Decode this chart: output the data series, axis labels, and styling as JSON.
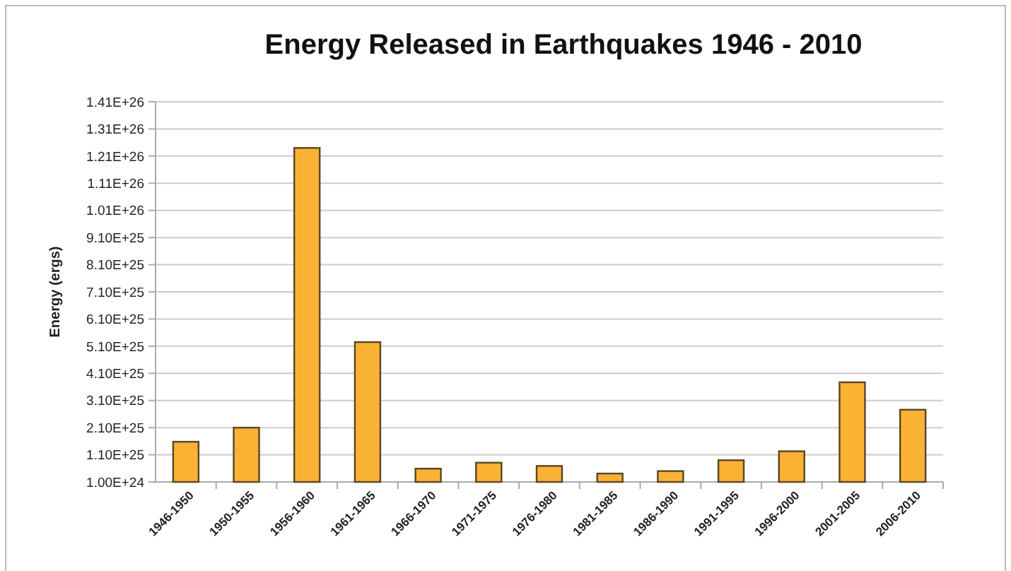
{
  "chart_data": {
    "type": "bar",
    "title": "Energy Released in Earthquakes 1946 - 2010",
    "ylabel": "Energy (ergs)",
    "categories": [
      "1946-1950",
      "1950-1955",
      "1956-1960",
      "1961-1965",
      "1966-1970",
      "1971-1975",
      "1976-1980",
      "1981-1985",
      "1986-1990",
      "1991-1995",
      "1996-2000",
      "2001-2005",
      "2006-2010"
    ],
    "values": [
      1.58e+25,
      2.1e+25,
      1.24e+26,
      5.25e+25,
      5.9e+24,
      8.1e+24,
      6.9e+24,
      4.1e+24,
      5e+24,
      9e+24,
      1.23e+25,
      3.77e+25,
      2.76e+25
    ],
    "color": "#f9b233",
    "ylim": [
      1e+24,
      1.41e+26
    ],
    "yticks": [
      {
        "value": 1e+24,
        "label": "1.00E+24"
      },
      {
        "value": 1.1e+25,
        "label": "1.10E+25"
      },
      {
        "value": 2.1e+25,
        "label": "2.10E+25"
      },
      {
        "value": 3.1e+25,
        "label": "3.10E+25"
      },
      {
        "value": 4.1e+25,
        "label": "4.10E+25"
      },
      {
        "value": 5.1e+25,
        "label": "5.10E+25"
      },
      {
        "value": 6.1e+25,
        "label": "6.10E+25"
      },
      {
        "value": 7.1e+25,
        "label": "7.10E+25"
      },
      {
        "value": 8.1e+25,
        "label": "8.10E+25"
      },
      {
        "value": 9.1e+25,
        "label": "9.10E+25"
      },
      {
        "value": 1.01e+26,
        "label": "1.01E+26"
      },
      {
        "value": 1.11e+26,
        "label": "1.11E+26"
      },
      {
        "value": 1.21e+26,
        "label": "1.21E+26"
      },
      {
        "value": 1.31e+26,
        "label": "1.31E+26"
      },
      {
        "value": 1.41e+26,
        "label": "1.41E+26"
      }
    ],
    "grid": "y"
  }
}
